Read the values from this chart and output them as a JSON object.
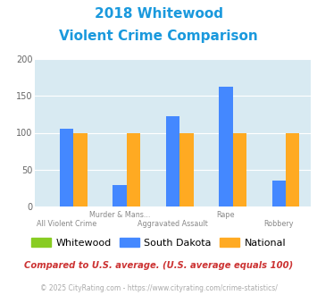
{
  "title_line1": "2018 Whitewood",
  "title_line2": "Violent Crime Comparison",
  "categories": [
    "All Violent Crime",
    "Murder & Mans...",
    "Aggravated Assault",
    "Rape",
    "Robbery"
  ],
  "cat_labels_row1": [
    "",
    "Murder & Mans...",
    "",
    "Rape",
    ""
  ],
  "cat_labels_row2": [
    "All Violent Crime",
    "",
    "Aggravated Assault",
    "",
    "Robbery"
  ],
  "whitewood": [
    0,
    0,
    0,
    0,
    0
  ],
  "south_dakota": [
    106,
    29,
    122,
    163,
    35
  ],
  "national": [
    100,
    100,
    100,
    100,
    100
  ],
  "colors": {
    "whitewood": "#88cc22",
    "south_dakota": "#4488ff",
    "national": "#ffaa22"
  },
  "ylim": [
    0,
    200
  ],
  "yticks": [
    0,
    50,
    100,
    150,
    200
  ],
  "bg_color": "#d8eaf2",
  "title_color": "#1a99dd",
  "footnote_color": "#cc3333",
  "credit_color": "#aaaaaa",
  "footnote": "Compared to U.S. average. (U.S. average equals 100)",
  "credit": "© 2025 CityRating.com - https://www.cityrating.com/crime-statistics/"
}
